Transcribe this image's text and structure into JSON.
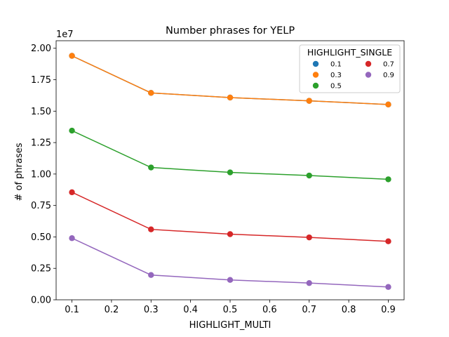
{
  "chart_data": {
    "type": "line",
    "title": "Number phrases for YELP",
    "xlabel": "HIGHLIGHT_MULTI",
    "ylabel": "# of phrases",
    "y_offset_label": "1e7",
    "x": [
      0.1,
      0.3,
      0.5,
      0.7,
      0.9
    ],
    "xlim": [
      0.06,
      0.94
    ],
    "ylim": [
      0,
      2.06
    ],
    "x_ticks": [
      "0.1",
      "0.2",
      "0.3",
      "0.4",
      "0.5",
      "0.6",
      "0.7",
      "0.8",
      "0.9"
    ],
    "y_ticks": [
      "0.00",
      "0.25",
      "0.50",
      "0.75",
      "1.00",
      "1.25",
      "1.50",
      "1.75",
      "2.00"
    ],
    "grid": false,
    "legend": {
      "title": "HIGHLIGHT_SINGLE",
      "placement": "top-right",
      "columns": 2
    },
    "series": [
      {
        "name": "0.1",
        "color": "#1f77b4",
        "values": [
          1.94,
          1.645,
          1.608,
          1.582,
          1.553
        ]
      },
      {
        "name": "0.3",
        "color": "#ff7f0e",
        "values": [
          1.94,
          1.645,
          1.608,
          1.582,
          1.553
        ]
      },
      {
        "name": "0.5",
        "color": "#2ca02c",
        "values": [
          1.345,
          1.052,
          1.013,
          0.988,
          0.958
        ]
      },
      {
        "name": "0.7",
        "color": "#d62728",
        "values": [
          0.855,
          0.56,
          0.522,
          0.496,
          0.465
        ]
      },
      {
        "name": "0.9",
        "color": "#9467bd",
        "values": [
          0.49,
          0.197,
          0.158,
          0.133,
          0.102
        ]
      }
    ]
  }
}
